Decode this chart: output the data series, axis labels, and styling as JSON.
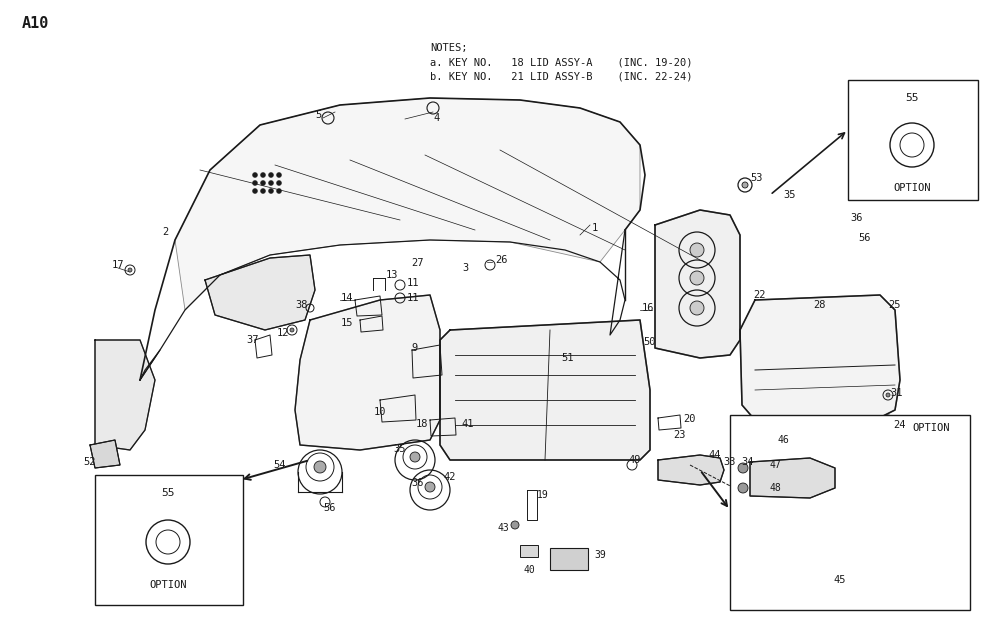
{
  "page_label": "A10",
  "bg_color": "#ffffff",
  "line_color": "#1a1a1a",
  "notes_line1": "NOTES;",
  "notes_line2": "  a. KEY NO.   18 LID ASSY-A    (INC. 19-20)",
  "notes_line3": "  b. KEY NO.   21 LID ASSY-B    (INC. 22-24)",
  "figsize": [
    9.91,
    6.41
  ],
  "dpi": 100
}
